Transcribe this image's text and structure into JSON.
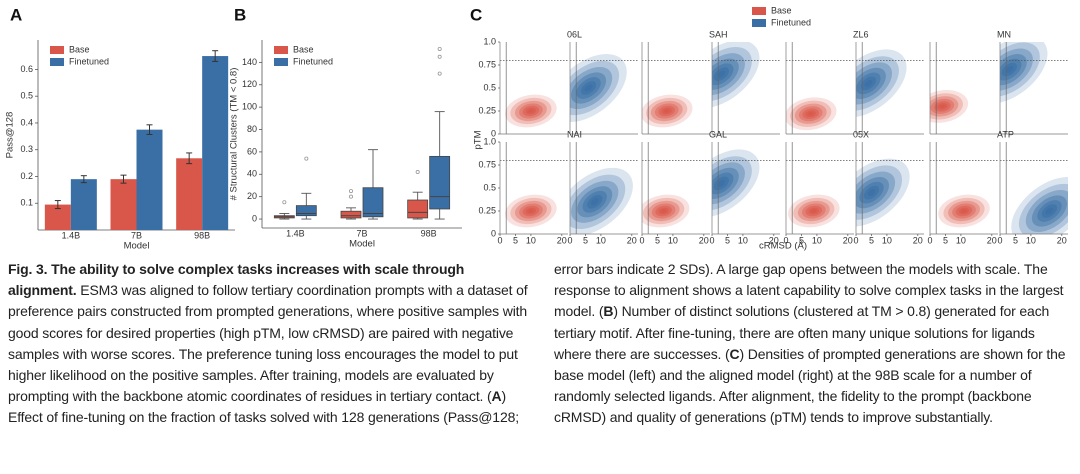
{
  "chart_data": [
    {
      "type": "bar",
      "panel_label": "A",
      "ylabel": "Pass@128",
      "xlabel": "Model",
      "categories": [
        "1.4B",
        "7B",
        "98B"
      ],
      "series": [
        {
          "name": "Base",
          "color": "#d9574a",
          "values": [
            0.095,
            0.19,
            0.268
          ],
          "errors": [
            0.015,
            0.015,
            0.02
          ]
        },
        {
          "name": "Finetuned",
          "color": "#3a6fa5",
          "values": [
            0.19,
            0.375,
            0.65
          ],
          "errors": [
            0.013,
            0.018,
            0.02
          ]
        }
      ],
      "ylim": [
        0,
        0.71
      ],
      "yticks": [
        0.1,
        0.2,
        0.3,
        0.4,
        0.5,
        0.6
      ]
    },
    {
      "type": "box",
      "panel_label": "B",
      "ylabel": "# Structural Clusters (TM < 0.8)",
      "xlabel": "Model",
      "categories": [
        "1.4B",
        "7B",
        "98B"
      ],
      "series": [
        {
          "name": "Base",
          "color": "#d9574a",
          "boxes": [
            {
              "min": 0,
              "q1": 1,
              "median": 2,
              "q3": 3,
              "max": 5,
              "outliers": [
                15
              ]
            },
            {
              "min": 0,
              "q1": 1,
              "median": 3,
              "q3": 7,
              "max": 10,
              "outliers": [
                20,
                25
              ]
            },
            {
              "min": 0,
              "q1": 1,
              "median": 6,
              "q3": 17,
              "max": 24,
              "outliers": [
                42
              ]
            }
          ]
        },
        {
          "name": "Finetuned",
          "color": "#3a6fa5",
          "boxes": [
            {
              "min": 0,
              "q1": 3,
              "median": 5,
              "q3": 12,
              "max": 23,
              "outliers": [
                54
              ]
            },
            {
              "min": 0,
              "q1": 2,
              "median": 5,
              "q3": 28,
              "max": 62,
              "outliers": []
            },
            {
              "min": 0,
              "q1": 9,
              "median": 20,
              "q3": 56,
              "max": 96,
              "outliers": [
                130,
                145,
                152
              ]
            }
          ]
        }
      ],
      "ylim": [
        -8,
        160
      ],
      "yticks": [
        0,
        20,
        40,
        60,
        80,
        100,
        120,
        140
      ]
    },
    {
      "type": "density",
      "panel_label": "C",
      "ylabel": "pTM",
      "xlabel": "cRMSD (Å)",
      "series": [
        {
          "name": "Base",
          "color": "#d9574a"
        },
        {
          "name": "Finetuned",
          "color": "#3a6fa5"
        }
      ],
      "xlim": [
        0,
        22
      ],
      "ylim": [
        0,
        1
      ],
      "xticks": [
        0,
        5,
        10,
        20
      ],
      "yticks": [
        0,
        0.25,
        0.5,
        0.75,
        {
          "value": 1,
          "label": "1.0"
        }
      ],
      "ptm_threshold": 0.8,
      "crmsd_threshold": 2,
      "panels": [
        {
          "label": "06L",
          "base_peak": [
            10,
            0.25
          ],
          "finetuned_peak": [
            6,
            0.5
          ]
        },
        {
          "label": "SAH",
          "base_peak": [
            8,
            0.25
          ],
          "finetuned_peak": [
            3,
            0.65
          ]
        },
        {
          "label": "ZL6",
          "base_peak": [
            8,
            0.22
          ],
          "finetuned_peak": [
            4,
            0.55
          ]
        },
        {
          "label": "MN",
          "base_peak": [
            4,
            0.3
          ],
          "finetuned_peak": [
            3,
            0.7
          ]
        },
        {
          "label": "NAI",
          "base_peak": [
            10,
            0.25
          ],
          "finetuned_peak": [
            8,
            0.35
          ]
        },
        {
          "label": "GAL",
          "base_peak": [
            7,
            0.25
          ],
          "finetuned_peak": [
            3,
            0.55
          ]
        },
        {
          "label": "05X",
          "base_peak": [
            9,
            0.25
          ],
          "finetuned_peak": [
            5,
            0.45
          ]
        },
        {
          "label": "ATP",
          "base_peak": [
            11,
            0.25
          ],
          "finetuned_peak": [
            16,
            0.25
          ]
        }
      ]
    }
  ],
  "caption": {
    "body": [
      {
        "text": "Fig. 3. The ability to solve complex tasks increases with scale through alignment.",
        "bold": true
      },
      {
        "text": " ESM3 was aligned to follow tertiary coordination prompts with a dataset of preference pairs constructed from prompted generations, where positive samples with good scores for desired properties (high pTM, low cRMSD) are paired with negative samples with worse scores. The preference tuning loss encourages the model to put higher likelihood on the positive samples. After training, models are evaluated by prompting with the backbone atomic coordinates of residues in tertiary contact. (",
        "bold": false
      },
      {
        "text": "A",
        "bold": true
      },
      {
        "text": ") Effect of fine-tuning on the fraction of tasks solved with 128 generations (Pass@128; error bars indicate 2 SDs). A large gap opens between the models with scale. The response to alignment shows a latent capability to solve complex tasks in the largest model. (",
        "bold": false
      },
      {
        "text": "B",
        "bold": true
      },
      {
        "text": ") Number of distinct solutions (clustered at TM > 0.8) generated for each tertiary motif. After fine-tuning, there are often many unique solutions for ligands where there are successes. (",
        "bold": false
      },
      {
        "text": "C",
        "bold": true
      },
      {
        "text": ") Densities of prompted generations are shown for the base model (left) and the aligned model (right) at the 98B scale for a number of randomly selected ligands. After alignment, the fidelity to the prompt (backbone cRMSD) and quality of generations (pTM) tends to improve substantially.",
        "bold": false
      }
    ]
  }
}
